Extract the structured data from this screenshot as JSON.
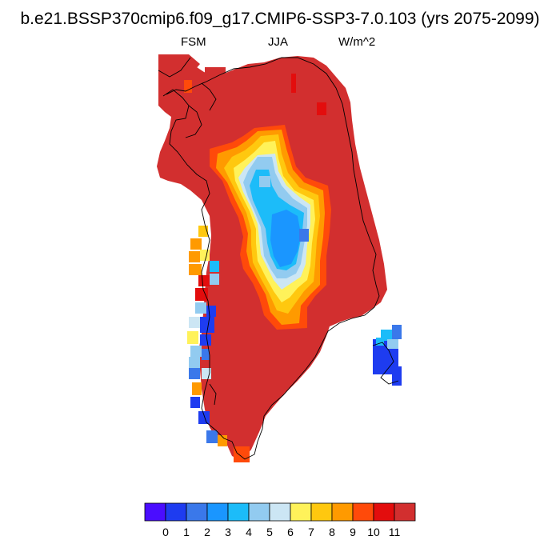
{
  "title": "b.e21.BSSP370cmip6.f09_g17.CMIP6-SSP3-7.0.103 (yrs 2075-2099)",
  "subtitle": {
    "left": "FSM",
    "center": "JJA",
    "right": "W/m^2"
  },
  "colorbar": {
    "colors": [
      "#4a0dff",
      "#1e3cf0",
      "#3a78ea",
      "#1a96ff",
      "#1cbcf9",
      "#92cbf0",
      "#cce6f4",
      "#fff25a",
      "#ffc80f",
      "#ff9a00",
      "#ff4a0a",
      "#e30d0d",
      "#d22f2f"
    ],
    "tick_labels": [
      "0",
      "1",
      "2",
      "3",
      "4",
      "5",
      "6",
      "7",
      "8",
      "9",
      "10",
      "11"
    ]
  },
  "map": {
    "region": "Greenland",
    "background_color": "#d22f2f",
    "coastline_color": "#000000"
  }
}
